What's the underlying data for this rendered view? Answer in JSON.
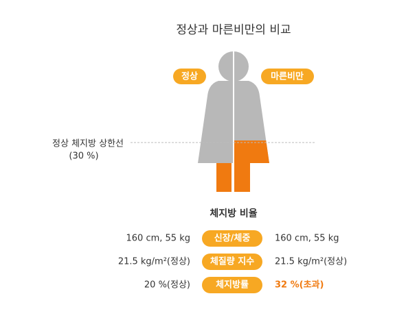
{
  "title": "정상과 마른비만의 비교",
  "badges": [
    "정상",
    "마른비만"
  ],
  "threshold": {
    "label": "정상 체지방 상한선",
    "value": "(30 %)"
  },
  "table": {
    "title": "체지방 비율",
    "rows": [
      [
        "160 cm, 55 kg",
        "신장/체중",
        "160 cm, 55 kg"
      ],
      [
        "21.5 kg/m²(정상)",
        "체질량 지수",
        "21.5 kg/m²(정상)"
      ],
      [
        "20 %(정상)",
        "체지방률",
        "32 %(초과)"
      ]
    ]
  }
}
